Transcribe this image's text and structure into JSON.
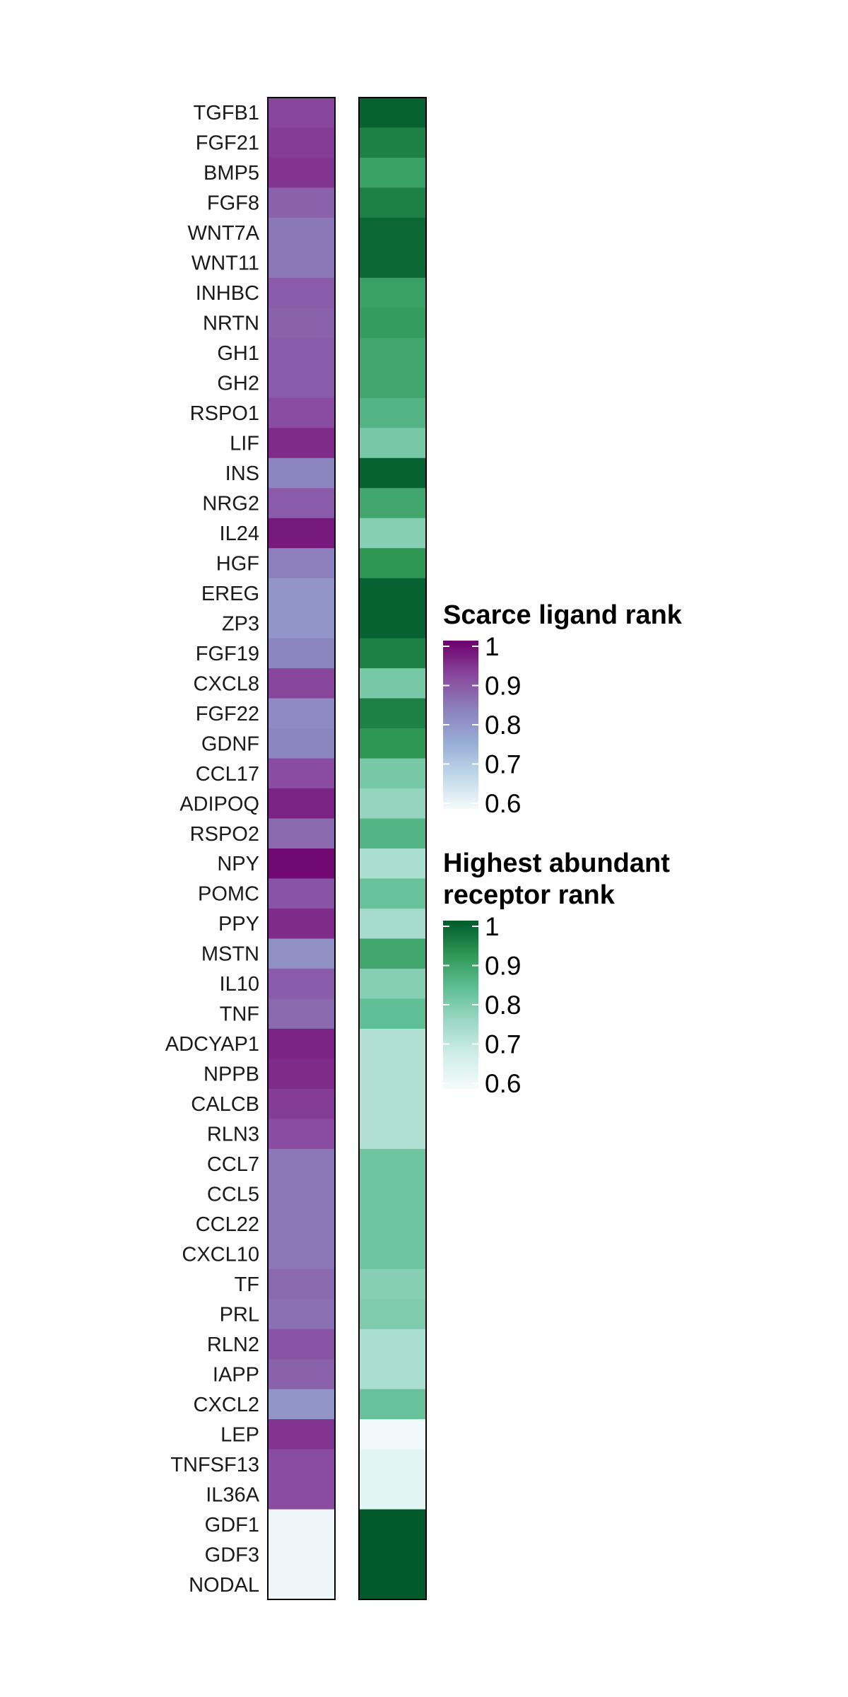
{
  "chart_data": {
    "type": "heatmap",
    "rows": [
      "TGFB1",
      "FGF21",
      "BMP5",
      "FGF8",
      "WNT7A",
      "WNT11",
      "INHBC",
      "NRTN",
      "GH1",
      "GH2",
      "RSPO1",
      "LIF",
      "INS",
      "NRG2",
      "IL24",
      "HGF",
      "EREG",
      "ZP3",
      "FGF19",
      "CXCL8",
      "FGF22",
      "GDNF",
      "CCL17",
      "ADIPOQ",
      "RSPO2",
      "NPY",
      "POMC",
      "PPY",
      "MSTN",
      "IL10",
      "TNF",
      "ADCYAP1",
      "NPPB",
      "CALCB",
      "RLN3",
      "CCL7",
      "CCL5",
      "CCL22",
      "CXCL10",
      "TF",
      "PRL",
      "RLN2",
      "IAPP",
      "CXCL2",
      "LEP",
      "TNFSF13",
      "IL36A",
      "GDF1",
      "GDF3",
      "NODAL"
    ],
    "series": [
      {
        "name": "Scarce ligand rank",
        "values": [
          0.92,
          0.93,
          0.94,
          0.88,
          0.85,
          0.85,
          0.89,
          0.88,
          0.89,
          0.89,
          0.91,
          0.95,
          0.83,
          0.89,
          0.97,
          0.84,
          0.8,
          0.8,
          0.83,
          0.92,
          0.82,
          0.83,
          0.91,
          0.96,
          0.87,
          0.99,
          0.9,
          0.95,
          0.81,
          0.89,
          0.87,
          0.96,
          0.95,
          0.93,
          0.91,
          0.85,
          0.85,
          0.85,
          0.85,
          0.87,
          0.86,
          0.9,
          0.88,
          0.8,
          0.94,
          0.91,
          0.91,
          0.61,
          0.61,
          0.61
        ]
      },
      {
        "name": "Highest abundant receptor rank",
        "values": [
          0.99,
          0.95,
          0.9,
          0.95,
          0.98,
          0.98,
          0.9,
          0.91,
          0.89,
          0.89,
          0.86,
          0.81,
          0.99,
          0.89,
          0.79,
          0.92,
          0.99,
          0.99,
          0.95,
          0.81,
          0.95,
          0.92,
          0.81,
          0.77,
          0.86,
          0.74,
          0.83,
          0.75,
          0.89,
          0.79,
          0.84,
          0.73,
          0.73,
          0.73,
          0.73,
          0.82,
          0.82,
          0.82,
          0.82,
          0.79,
          0.8,
          0.74,
          0.74,
          0.83,
          0.61,
          0.64,
          0.64,
          1.0,
          1.0,
          1.0
        ]
      }
    ],
    "legends": [
      {
        "title_lines": [
          "Scarce ligand rank"
        ],
        "ticks": [
          "1",
          "0.9",
          "0.8",
          "0.7",
          "0.6"
        ],
        "tick_values": [
          1.0,
          0.9,
          0.8,
          0.7,
          0.6
        ],
        "range": [
          0.6,
          1.0
        ],
        "palette": [
          "#f4fafc",
          "#c0d8e9",
          "#97acd5",
          "#8c7fbb",
          "#88459c",
          "#6d006b"
        ]
      },
      {
        "title_lines": [
          "Highest abundant",
          "receptor rank"
        ],
        "ticks": [
          "1",
          "0.9",
          "0.8",
          "0.7",
          "0.6"
        ],
        "tick_values": [
          1.0,
          0.9,
          0.8,
          0.7,
          0.6
        ],
        "range": [
          0.6,
          1.0
        ],
        "palette": [
          "#f4fbfb",
          "#d2eee8",
          "#9dd8c6",
          "#5fbf95",
          "#2e9754",
          "#005a2b"
        ]
      }
    ]
  }
}
